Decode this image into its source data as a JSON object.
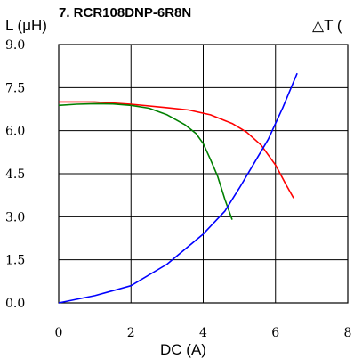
{
  "chart_data": {
    "type": "line",
    "title": "7. RCR108DNP-6R8N",
    "ylabel": "L (μH)",
    "y2label": "△T (",
    "xlabel": "DC (A)",
    "xlim": [
      0,
      8
    ],
    "ylim": [
      0,
      9
    ],
    "x_ticks": [
      "0",
      "2",
      "4",
      "6",
      "8"
    ],
    "y_ticks": [
      "0.0",
      "1.5",
      "3.0",
      "4.5",
      "6.0",
      "7.5",
      "9.0"
    ],
    "grid": true,
    "legend": "none",
    "series": [
      {
        "color": "#ff0000",
        "points": [
          [
            0,
            7.0
          ],
          [
            1,
            7.0
          ],
          [
            2,
            6.92
          ],
          [
            3,
            6.8
          ],
          [
            3.6,
            6.72
          ],
          [
            4.2,
            6.55
          ],
          [
            4.8,
            6.25
          ],
          [
            5.2,
            5.95
          ],
          [
            5.6,
            5.5
          ],
          [
            6.0,
            4.8
          ],
          [
            6.3,
            4.1
          ],
          [
            6.5,
            3.65
          ]
        ]
      },
      {
        "color": "#008000",
        "points": [
          [
            0,
            6.88
          ],
          [
            0.5,
            6.92
          ],
          [
            1,
            6.94
          ],
          [
            1.5,
            6.93
          ],
          [
            2,
            6.88
          ],
          [
            2.5,
            6.78
          ],
          [
            3,
            6.55
          ],
          [
            3.5,
            6.2
          ],
          [
            3.8,
            5.9
          ],
          [
            4.0,
            5.55
          ],
          [
            4.2,
            5.0
          ],
          [
            4.4,
            4.4
          ],
          [
            4.6,
            3.6
          ],
          [
            4.8,
            2.9
          ]
        ]
      },
      {
        "color": "#0000ff",
        "points": [
          [
            0,
            0
          ],
          [
            1,
            0.25
          ],
          [
            2,
            0.6
          ],
          [
            3,
            1.35
          ],
          [
            4,
            2.4
          ],
          [
            4.6,
            3.2
          ],
          [
            5.0,
            4.0
          ],
          [
            5.4,
            4.85
          ],
          [
            5.8,
            5.7
          ],
          [
            6.2,
            6.8
          ],
          [
            6.6,
            8.0
          ]
        ]
      }
    ]
  }
}
